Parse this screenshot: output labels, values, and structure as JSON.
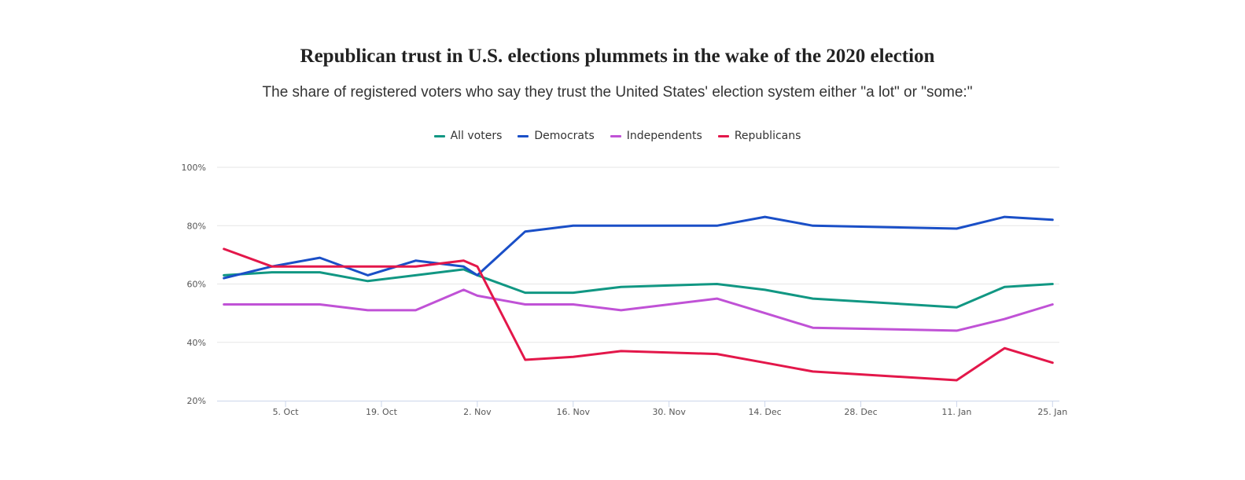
{
  "chart_data": {
    "type": "line",
    "title": "Republican trust in U.S. elections plummets in the wake of the 2020 election",
    "subtitle": "The share of registered voters who say they trust the United States' election system either \"a lot\" or \"some:\"",
    "xlabel": "",
    "ylabel": "",
    "ylim": [
      20,
      100
    ],
    "y_ticks": [
      {
        "value": 20,
        "label": "20%"
      },
      {
        "value": 40,
        "label": "40%"
      },
      {
        "value": 60,
        "label": "60%"
      },
      {
        "value": 80,
        "label": "80%"
      },
      {
        "value": 100,
        "label": "100%"
      }
    ],
    "x_range": [
      "2020-09-25",
      "2021-01-26"
    ],
    "x_ticks": [
      {
        "date": "2020-10-05",
        "label": "5. Oct"
      },
      {
        "date": "2020-10-19",
        "label": "19. Oct"
      },
      {
        "date": "2020-11-02",
        "label": "2. Nov"
      },
      {
        "date": "2020-11-16",
        "label": "16. Nov"
      },
      {
        "date": "2020-11-30",
        "label": "30. Nov"
      },
      {
        "date": "2020-12-14",
        "label": "14. Dec"
      },
      {
        "date": "2020-12-28",
        "label": "28. Dec"
      },
      {
        "date": "2021-01-11",
        "label": "11. Jan"
      },
      {
        "date": "2021-01-25",
        "label": "25. Jan"
      }
    ],
    "x": [
      "2020-09-26",
      "2020-10-03",
      "2020-10-10",
      "2020-10-17",
      "2020-10-24",
      "2020-10-31",
      "2020-11-02",
      "2020-11-09",
      "2020-11-16",
      "2020-11-23",
      "2020-12-07",
      "2020-12-14",
      "2020-12-21",
      "2021-01-11",
      "2021-01-18",
      "2021-01-25"
    ],
    "grid": true,
    "legend_position": "top-center",
    "series": [
      {
        "name": "All voters",
        "color": "#119783",
        "values": [
          63,
          64,
          64,
          61,
          63,
          65,
          63,
          57,
          57,
          59,
          60,
          58,
          55,
          52,
          59,
          60
        ]
      },
      {
        "name": "Democrats",
        "color": "#1a4fc7",
        "values": [
          62,
          66,
          69,
          63,
          68,
          66,
          63,
          78,
          80,
          80,
          80,
          83,
          80,
          79,
          83,
          82
        ]
      },
      {
        "name": "Independents",
        "color": "#c052d6",
        "values": [
          53,
          53,
          53,
          51,
          51,
          58,
          56,
          53,
          53,
          51,
          55,
          50,
          45,
          44,
          48,
          53
        ]
      },
      {
        "name": "Republicans",
        "color": "#e3174a",
        "values": [
          72,
          66,
          66,
          66,
          66,
          68,
          66,
          34,
          35,
          37,
          36,
          33,
          30,
          27,
          38,
          33
        ]
      }
    ]
  }
}
